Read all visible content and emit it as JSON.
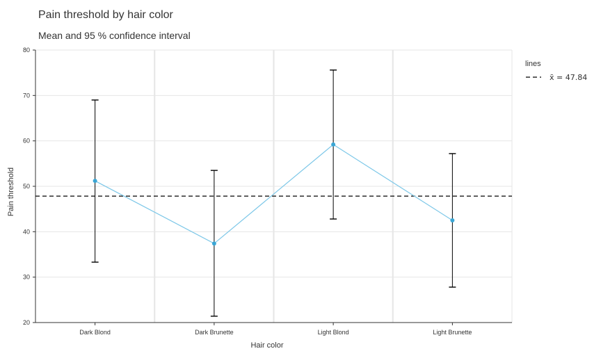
{
  "chart_data": {
    "type": "line",
    "title": "Pain threshold by hair color",
    "subtitle": "Mean and 95 % confidence interval",
    "xlabel": "Hair color",
    "ylabel": "Pain threshold",
    "categories": [
      "Dark Blond",
      "Dark Brunette",
      "Light Blond",
      "Light Brunette"
    ],
    "series": [
      {
        "values": [
          51.2,
          37.4,
          59.2,
          42.5
        ],
        "ci_lower": [
          33.3,
          21.4,
          42.8,
          27.8
        ],
        "ci_upper": [
          69.0,
          53.5,
          75.6,
          57.2
        ]
      }
    ],
    "ylim": [
      20,
      80
    ],
    "yticks": [
      20,
      30,
      40,
      50,
      60,
      70,
      80
    ],
    "reference_line": {
      "value": 47.84,
      "label": "x̄ = 47.84",
      "style": "dashed"
    },
    "legend": {
      "title": "lines",
      "placement": "right"
    },
    "grid": true,
    "colors": {
      "series": "#7cc7e8",
      "point": "#3aa6d5",
      "errorbar": "#000000",
      "reference": "#000000",
      "grid": "#e6e6e6"
    }
  }
}
